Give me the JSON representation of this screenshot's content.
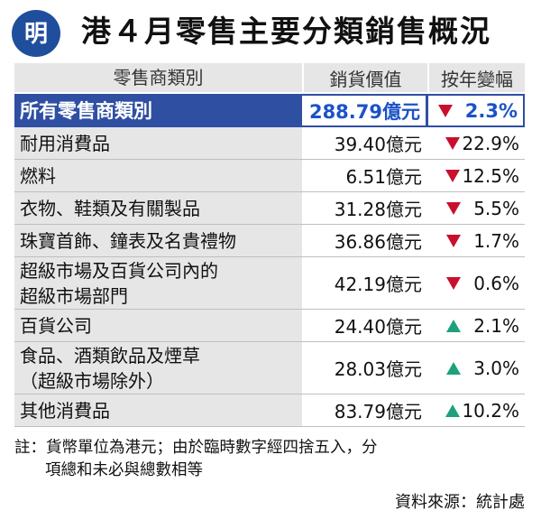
{
  "header": {
    "logo_char": "明",
    "title": "港４月零售主要分類銷售概況"
  },
  "table": {
    "columns": [
      "零售商類別",
      "銷貨價值",
      "按年變幅"
    ],
    "total": {
      "category": "所有零售商類別",
      "value": "288.79億元",
      "change": "2.3%",
      "direction": "down"
    },
    "rows": [
      {
        "category": "耐用消費品",
        "value": "39.40億元",
        "change": "22.9%",
        "direction": "down"
      },
      {
        "category": "燃料",
        "value": "6.51億元",
        "change": "12.5%",
        "direction": "down"
      },
      {
        "category": "衣物、鞋類及有關製品",
        "value": "31.28億元",
        "change": "5.5%",
        "direction": "down"
      },
      {
        "category": "珠寶首飾、鐘表及名貴禮物",
        "value": "36.86億元",
        "change": "1.7%",
        "direction": "down"
      },
      {
        "category_lines": [
          "超級市場及百貨公司內的",
          "超級市場部門"
        ],
        "value": "42.19億元",
        "change": "0.6%",
        "direction": "down"
      },
      {
        "category": "百貨公司",
        "value": "24.40億元",
        "change": "2.1%",
        "direction": "up"
      },
      {
        "category_lines": [
          "食品、酒類飲品及煙草",
          "（超級市場除外）"
        ],
        "value": "28.03億元",
        "change": "3.0%",
        "direction": "up"
      },
      {
        "category": "其他消費品",
        "value": "83.79億元",
        "change": "10.2%",
        "direction": "up"
      }
    ]
  },
  "note": {
    "line1": "註：貨幣單位為港元；由於臨時數字經四捨五入，分",
    "line2": "項總和未必與總數相等"
  },
  "source": "資料來源：統計處",
  "colors": {
    "accent": "#2f4fa3",
    "down": "#c8102e",
    "up": "#1fa07c",
    "value_highlight": "#1b52c8"
  }
}
